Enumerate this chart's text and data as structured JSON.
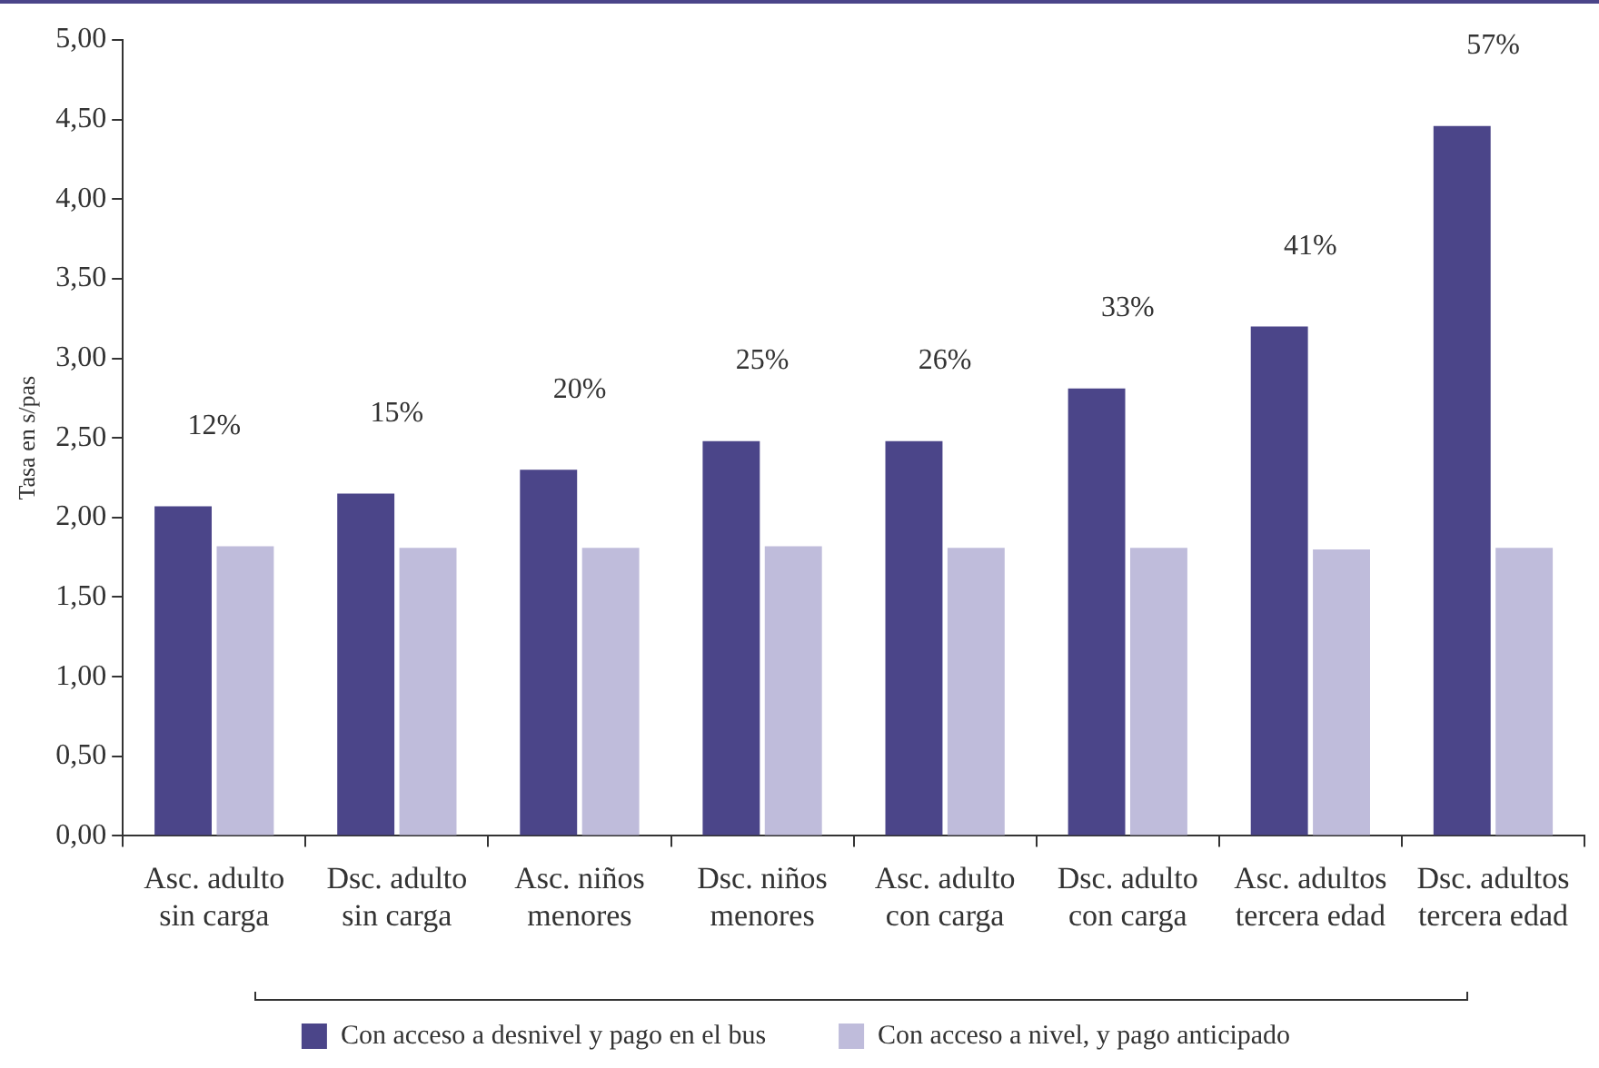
{
  "chart_data": {
    "type": "bar",
    "ylabel": "Tasa en s/pas",
    "categories": [
      "Asc. adulto sin carga",
      "Dsc. adulto sin carga",
      "Asc. niños menores",
      "Dsc. niños menores",
      "Asc. adulto con carga",
      "Dsc. adulto con carga",
      "Asc. adultos tercera edad",
      "Dsc. adultos tercera edad"
    ],
    "series": [
      {
        "name": "Con acceso a desnivel y pago en el bus",
        "color": "#4b4589",
        "values": [
          2.07,
          2.15,
          2.3,
          2.48,
          2.48,
          2.81,
          3.2,
          4.46
        ]
      },
      {
        "name": "Con acceso a nivel, y pago anticipado",
        "color": "#bfbcdb",
        "values": [
          1.82,
          1.81,
          1.81,
          1.82,
          1.81,
          1.81,
          1.8,
          1.81
        ]
      }
    ],
    "ylim": [
      0,
      5
    ],
    "yticks": [
      {
        "value": 0,
        "label": "0,00"
      },
      {
        "value": 0.5,
        "label": "0,50"
      },
      {
        "value": 1,
        "label": "1,00"
      },
      {
        "value": 1.5,
        "label": "1,50"
      },
      {
        "value": 2,
        "label": "2,00"
      },
      {
        "value": 2.5,
        "label": "2,50"
      },
      {
        "value": 3,
        "label": "3,00"
      },
      {
        "value": 3.5,
        "label": "3,50"
      },
      {
        "value": 4,
        "label": "4,00"
      },
      {
        "value": 4.5,
        "label": "4,50"
      },
      {
        "value": 5,
        "label": "5,00"
      }
    ],
    "annotations": [
      "12%",
      "15%",
      "20%",
      "25%",
      "26%",
      "33%",
      "41%",
      "57%"
    ],
    "grid": false,
    "legend": "bottom"
  }
}
